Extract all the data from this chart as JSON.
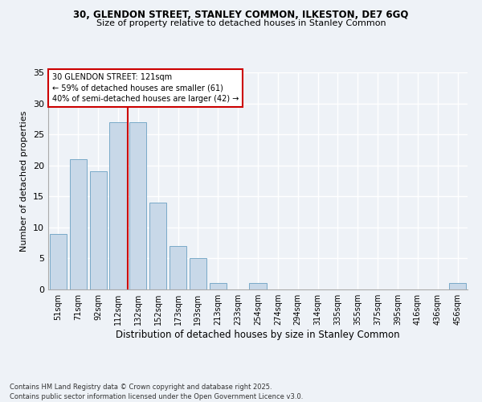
{
  "title1": "30, GLENDON STREET, STANLEY COMMON, ILKESTON, DE7 6GQ",
  "title2": "Size of property relative to detached houses in Stanley Common",
  "xlabel": "Distribution of detached houses by size in Stanley Common",
  "ylabel": "Number of detached properties",
  "categories": [
    "51sqm",
    "71sqm",
    "92sqm",
    "112sqm",
    "132sqm",
    "152sqm",
    "173sqm",
    "193sqm",
    "213sqm",
    "233sqm",
    "254sqm",
    "274sqm",
    "294sqm",
    "314sqm",
    "335sqm",
    "355sqm",
    "375sqm",
    "395sqm",
    "416sqm",
    "436sqm",
    "456sqm"
  ],
  "values": [
    9,
    21,
    19,
    27,
    27,
    14,
    7,
    5,
    1,
    0,
    1,
    0,
    0,
    0,
    0,
    0,
    0,
    0,
    0,
    0,
    1
  ],
  "bar_color": "#c8d8e8",
  "bar_edge_color": "#7aaac8",
  "bg_color": "#eef2f7",
  "grid_color": "#ffffff",
  "red_line_x": 3.5,
  "annotation_text": "30 GLENDON STREET: 121sqm\n← 59% of detached houses are smaller (61)\n40% of semi-detached houses are larger (42) →",
  "annotation_box_color": "#ffffff",
  "annotation_box_edge": "#cc0000",
  "footnote": "Contains HM Land Registry data © Crown copyright and database right 2025.\nContains public sector information licensed under the Open Government Licence v3.0.",
  "ylim": [
    0,
    35
  ],
  "yticks": [
    0,
    5,
    10,
    15,
    20,
    25,
    30,
    35
  ]
}
